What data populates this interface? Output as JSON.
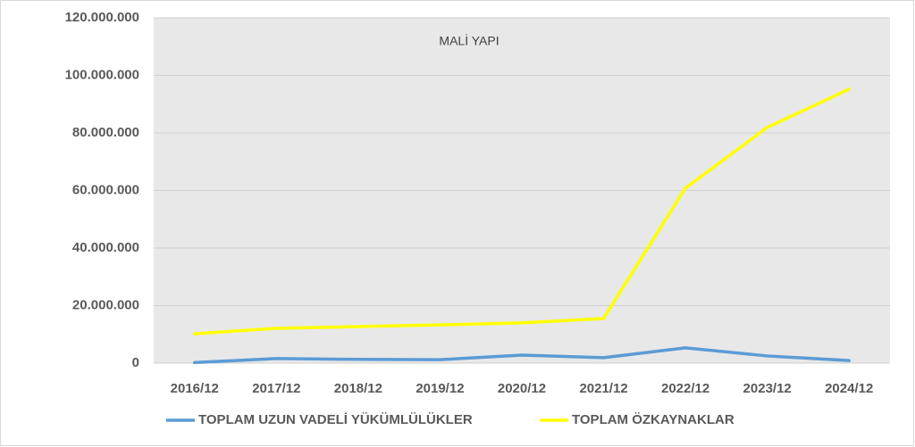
{
  "chart_data": {
    "type": "line",
    "title": "MALİ YAPI",
    "categories": [
      "2016/12",
      "2017/12",
      "2018/12",
      "2019/12",
      "2020/12",
      "2021/12",
      "2022/12",
      "2023/12",
      "2024/12"
    ],
    "series": [
      {
        "name": "TOPLAM UZUN VADELİ YÜKÜMLÜLÜKLER",
        "color": "#5b9bd5",
        "values": [
          200000,
          1600000,
          1300000,
          1200000,
          2800000,
          1900000,
          5300000,
          2500000,
          900000
        ]
      },
      {
        "name": "TOPLAM ÖZKAYNAKLAR",
        "color": "#ffff00",
        "values": [
          10200000,
          12100000,
          12700000,
          13300000,
          14000000,
          15500000,
          60800000,
          81900000,
          95200000
        ]
      }
    ],
    "ylim": [
      0,
      120000000
    ],
    "yticks": [
      0,
      {
        "value": 20000000,
        "label": "20.000.000"
      },
      {
        "value": 40000000,
        "label": "40.000.000"
      },
      {
        "value": 60000000,
        "label": "60.000.000"
      },
      {
        "value": 80000000,
        "label": "80.000.000"
      },
      {
        "value": 100000000,
        "label": "100.000.000"
      },
      {
        "value": 120000000,
        "label": "120.000.000"
      }
    ],
    "grid": true,
    "legend": "bottom"
  }
}
